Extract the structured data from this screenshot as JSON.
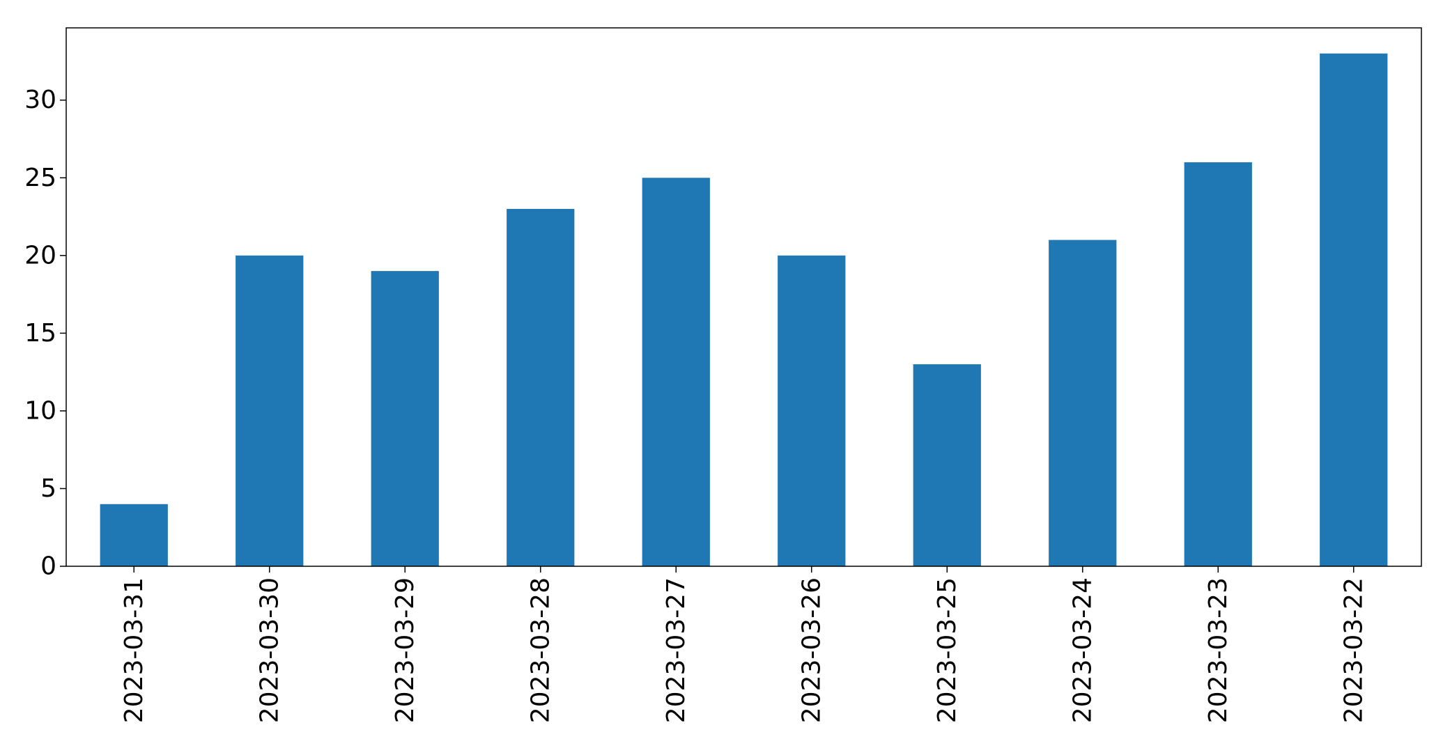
{
  "chart_data": {
    "type": "bar",
    "title": "",
    "xlabel": "",
    "ylabel": "",
    "categories": [
      "2023-03-31",
      "2023-03-30",
      "2023-03-29",
      "2023-03-28",
      "2023-03-27",
      "2023-03-26",
      "2023-03-25",
      "2023-03-24",
      "2023-03-23",
      "2023-03-22"
    ],
    "values": [
      4,
      20,
      19,
      23,
      25,
      20,
      13,
      21,
      26,
      33
    ],
    "ylim": [
      0,
      34.65
    ],
    "yticks": [
      0,
      5,
      10,
      15,
      20,
      25,
      30
    ],
    "ytick_labels": [
      "0",
      "5",
      "10",
      "15",
      "20",
      "25",
      "30"
    ],
    "bar_color": "#1f77b4",
    "grid": false,
    "legend": "none"
  }
}
